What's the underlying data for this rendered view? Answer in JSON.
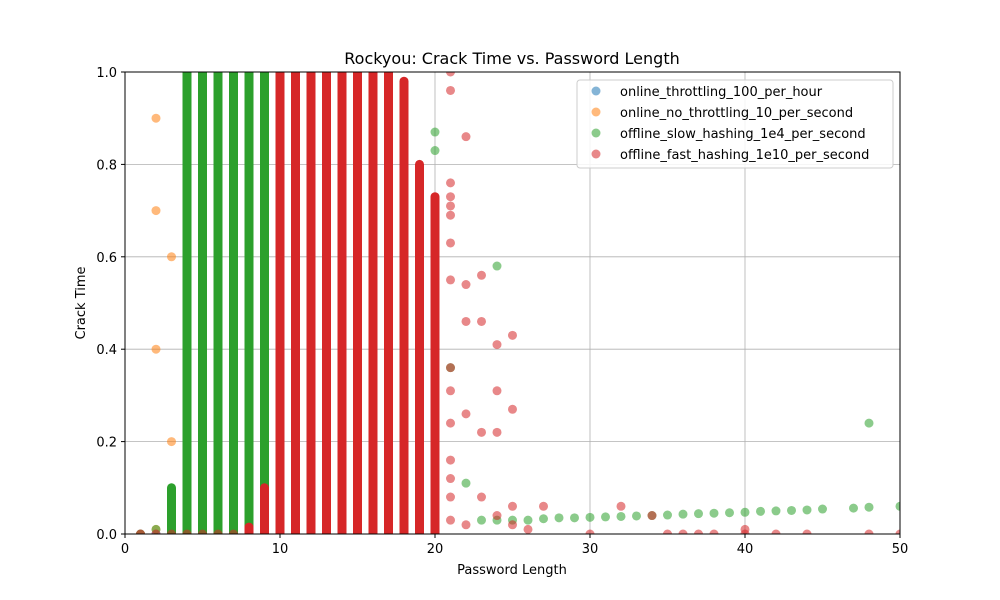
{
  "chart_data": {
    "type": "scatter",
    "title": "Rockyou: Crack Time vs. Password Length",
    "xlabel": "Password Length",
    "ylabel": "Crack Time",
    "xlim": [
      0,
      50
    ],
    "ylim": [
      0,
      1.0
    ],
    "xticks": [
      "0",
      "10",
      "20",
      "30",
      "40",
      "50"
    ],
    "yticks": [
      "0.0",
      "0.2",
      "0.4",
      "0.6",
      "0.8",
      "1.0"
    ],
    "grid": true,
    "legend_position": "top-right",
    "colors": {
      "online_throttling_100_per_hour": "#1f77b4",
      "online_no_throttling_10_per_second": "#ff7f0e",
      "offline_slow_hashing_1e4_per_second": "#2ca02c",
      "offline_fast_hashing_1e10_per_second": "#d62728"
    },
    "series": [
      {
        "name": "online_throttling_100_per_hour",
        "points": [
          [
            1,
            0.0
          ],
          [
            2,
            0.0
          ],
          [
            3,
            0.0
          ],
          [
            4,
            0.0
          ],
          [
            5,
            0.0
          ]
        ]
      },
      {
        "name": "online_no_throttling_10_per_second",
        "points": [
          [
            1,
            0.0
          ],
          [
            2,
            0.9
          ],
          [
            2,
            0.7
          ],
          [
            2,
            0.4
          ],
          [
            3,
            0.6
          ],
          [
            3,
            0.2
          ],
          [
            2,
            0.01
          ],
          [
            3,
            0.0
          ]
        ]
      },
      {
        "name": "offline_slow_hashing_1e4_per_second",
        "columns": [
          [
            4,
            0.0,
            1.0
          ],
          [
            5,
            0.0,
            1.0
          ],
          [
            6,
            0.0,
            1.0
          ],
          [
            7,
            0.0,
            1.0
          ],
          [
            8,
            0.0,
            1.0
          ],
          [
            9,
            0.0,
            1.0
          ],
          [
            3,
            0.0,
            0.1
          ]
        ],
        "points": [
          [
            1,
            0.0
          ],
          [
            2,
            0.01
          ],
          [
            20,
            0.87
          ],
          [
            20,
            0.83
          ],
          [
            20,
            0.58
          ],
          [
            21,
            0.36
          ],
          [
            22,
            0.11
          ],
          [
            23,
            0.03
          ],
          [
            24,
            0.58
          ],
          [
            24,
            0.03
          ],
          [
            25,
            0.03
          ],
          [
            26,
            0.03
          ],
          [
            27,
            0.033
          ],
          [
            28,
            0.035
          ],
          [
            29,
            0.035
          ],
          [
            30,
            0.036
          ],
          [
            31,
            0.037
          ],
          [
            32,
            0.038
          ],
          [
            33,
            0.039
          ],
          [
            34,
            0.04
          ],
          [
            35,
            0.041
          ],
          [
            36,
            0.043
          ],
          [
            37,
            0.044
          ],
          [
            38,
            0.045
          ],
          [
            39,
            0.046
          ],
          [
            40,
            0.047
          ],
          [
            41,
            0.049
          ],
          [
            42,
            0.05
          ],
          [
            43,
            0.051
          ],
          [
            44,
            0.052
          ],
          [
            45,
            0.054
          ],
          [
            47,
            0.056
          ],
          [
            48,
            0.058
          ],
          [
            48,
            0.24
          ],
          [
            50,
            0.06
          ]
        ]
      },
      {
        "name": "offline_fast_hashing_1e10_per_second",
        "columns": [
          [
            10,
            0.0,
            1.0
          ],
          [
            11,
            0.0,
            1.0
          ],
          [
            12,
            0.0,
            1.0
          ],
          [
            13,
            0.0,
            1.0
          ],
          [
            14,
            0.0,
            1.0
          ],
          [
            15,
            0.0,
            1.0
          ],
          [
            16,
            0.0,
            1.0
          ],
          [
            9,
            0.0,
            0.1
          ],
          [
            8,
            0.0,
            0.015
          ],
          [
            17,
            0.0,
            1.0
          ],
          [
            18,
            0.0,
            0.98
          ],
          [
            19,
            0.0,
            0.8
          ],
          [
            20,
            0.0,
            0.73
          ]
        ],
        "points": [
          [
            1,
            0.0
          ],
          [
            2,
            0.0
          ],
          [
            3,
            0.0
          ],
          [
            4,
            0.0
          ],
          [
            5,
            0.0
          ],
          [
            6,
            0.0
          ],
          [
            7,
            0.0
          ],
          [
            21,
            1.0
          ],
          [
            21,
            0.96
          ],
          [
            21,
            0.76
          ],
          [
            21,
            0.73
          ],
          [
            21,
            0.71
          ],
          [
            21,
            0.69
          ],
          [
            21,
            0.63
          ],
          [
            21,
            0.55
          ],
          [
            21,
            0.36
          ],
          [
            21,
            0.31
          ],
          [
            21,
            0.24
          ],
          [
            21,
            0.16
          ],
          [
            21,
            0.12
          ],
          [
            21,
            0.08
          ],
          [
            21,
            0.03
          ],
          [
            22,
            0.86
          ],
          [
            22,
            0.54
          ],
          [
            22,
            0.46
          ],
          [
            22,
            0.26
          ],
          [
            22,
            0.02
          ],
          [
            23,
            0.56
          ],
          [
            23,
            0.46
          ],
          [
            23,
            0.22
          ],
          [
            23,
            0.08
          ],
          [
            24,
            0.41
          ],
          [
            24,
            0.31
          ],
          [
            24,
            0.22
          ],
          [
            24,
            0.04
          ],
          [
            25,
            0.43
          ],
          [
            25,
            0.27
          ],
          [
            25,
            0.06
          ],
          [
            25,
            0.02
          ],
          [
            26,
            0.01
          ],
          [
            27,
            0.06
          ],
          [
            30,
            0.0
          ],
          [
            32,
            0.06
          ],
          [
            34,
            0.04
          ],
          [
            35,
            0.0
          ],
          [
            36,
            0.0
          ],
          [
            37,
            0.0
          ],
          [
            38,
            0.0
          ],
          [
            40,
            0.01
          ],
          [
            40,
            0.0
          ],
          [
            42,
            0.0
          ],
          [
            44,
            0.0
          ],
          [
            48,
            0.0
          ],
          [
            50,
            0.0
          ]
        ]
      }
    ]
  }
}
